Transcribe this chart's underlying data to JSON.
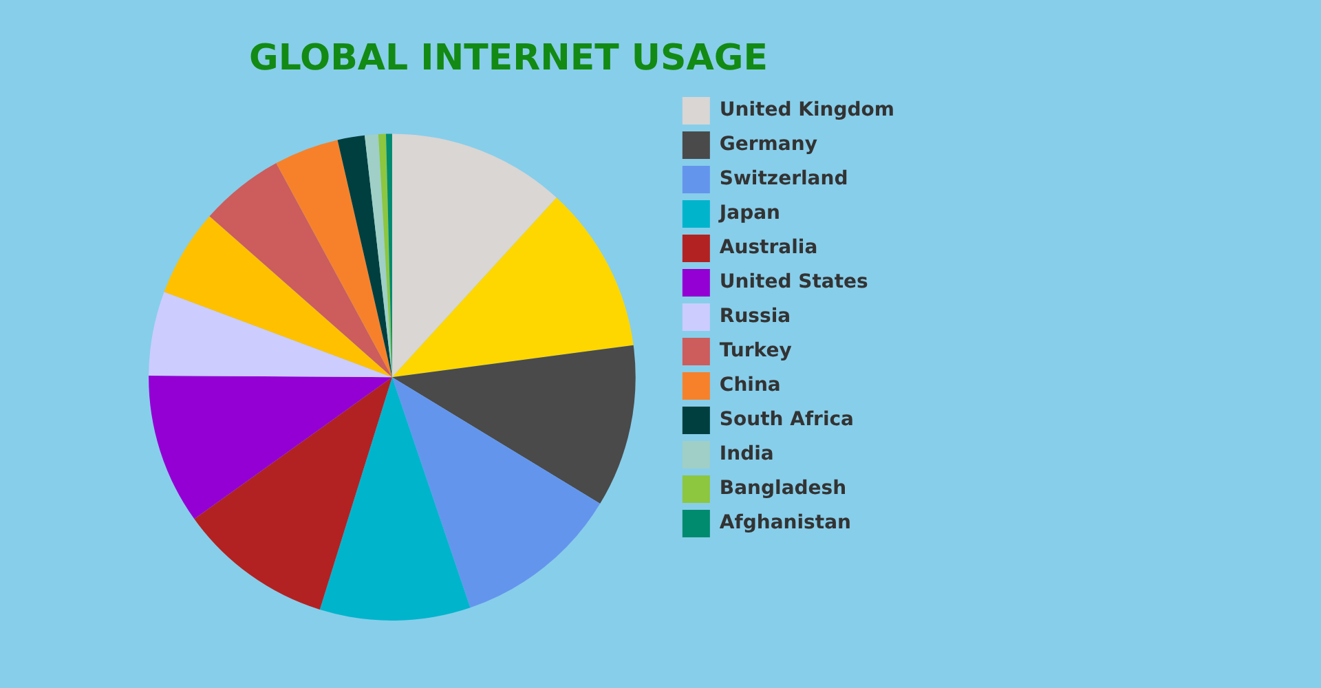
{
  "chart_data": {
    "type": "pie",
    "title": "GLOBAL INTERNET USAGE",
    "legend": "right",
    "categories": [
      "United Kingdom",
      null,
      "Germany",
      "Switzerland",
      "Japan",
      "Australia",
      "United States",
      "Russia",
      null,
      "Turkey",
      "China",
      "South Africa",
      "India",
      "Bangladesh",
      "Afghanistan"
    ],
    "values": [
      11.8,
      11.1,
      10.8,
      11.1,
      10,
      10.3,
      10,
      5.6,
      5.8,
      5.6,
      4.3,
      1.8,
      0.9,
      0.5,
      0.4
    ],
    "colors": [
      "#d9d6d4",
      "#ffd700",
      "#4a4a4a",
      "#6495ed",
      "#00b4cc",
      "#b22222",
      "#9400d3",
      "#ccccff",
      "#ffc000",
      "#cd5c5c",
      "#f7812a",
      "#003f3f",
      "#9fcfc6",
      "#8dc63f",
      "#008a6e"
    ]
  }
}
